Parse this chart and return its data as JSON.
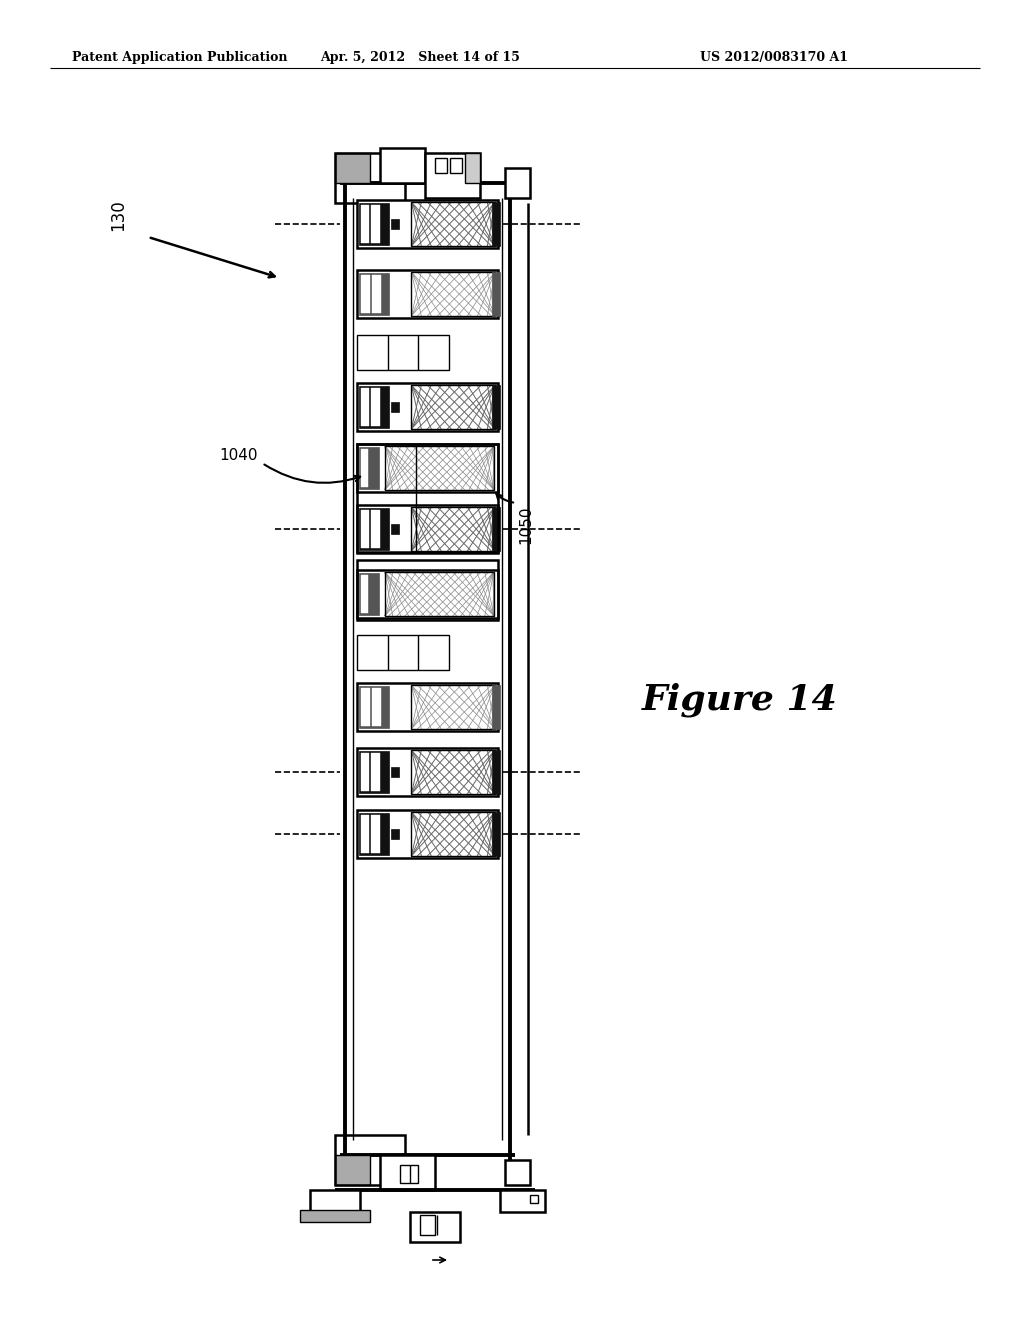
{
  "title": "Figure 14",
  "patent_header_left": "Patent Application Publication",
  "patent_header_mid": "Apr. 5, 2012   Sheet 14 of 15",
  "patent_header_right": "US 2012/0083170 A1",
  "label_130": "130",
  "label_1040": "1040",
  "label_1050": "1050",
  "background_color": "#ffffff",
  "line_color": "#000000",
  "gray_fill": "#aaaaaa",
  "light_gray": "#cccccc",
  "dark_color": "#111111"
}
